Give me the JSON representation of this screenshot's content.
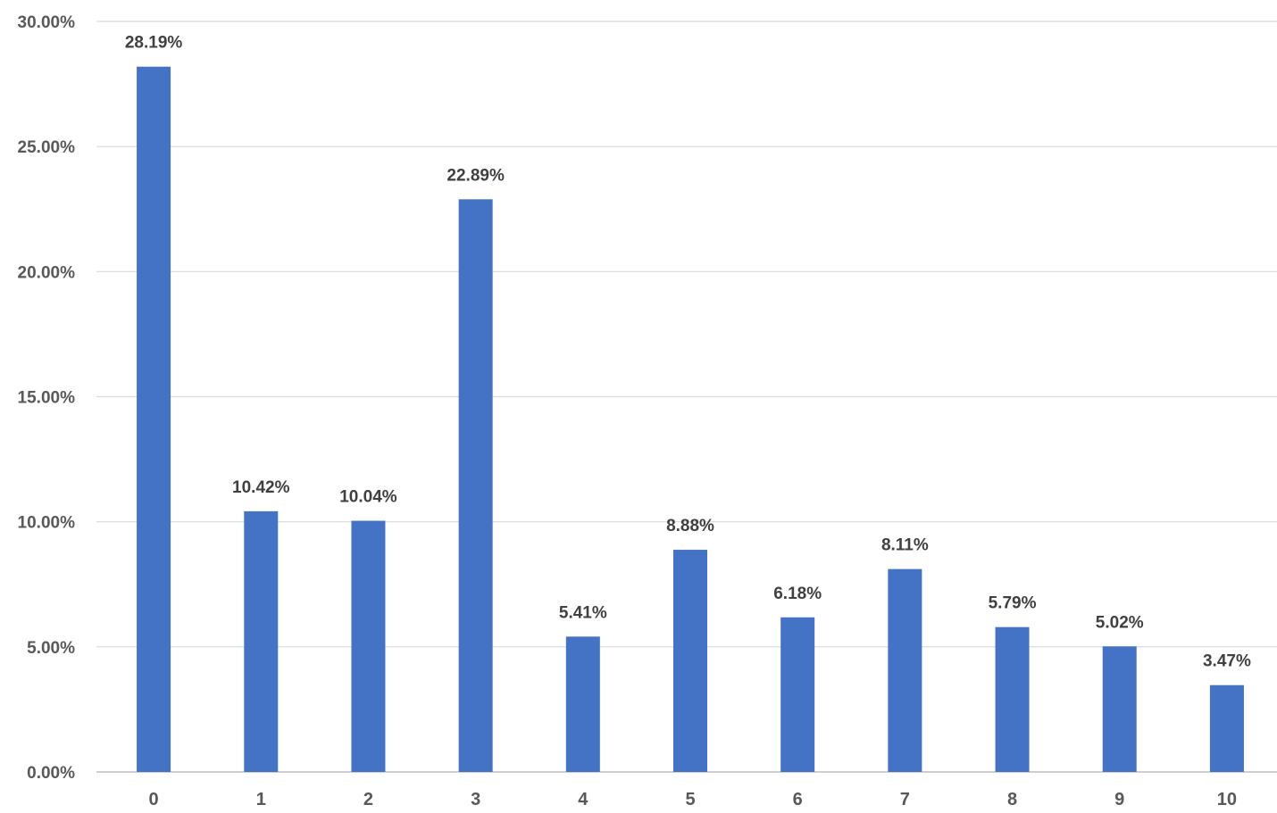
{
  "chart_data": {
    "type": "bar",
    "title": "",
    "xlabel": "",
    "ylabel": "",
    "categories": [
      "0",
      "1",
      "2",
      "3",
      "4",
      "5",
      "6",
      "7",
      "8",
      "9",
      "10"
    ],
    "values": [
      28.19,
      10.42,
      10.04,
      22.89,
      5.41,
      8.88,
      6.18,
      8.11,
      5.79,
      5.02,
      3.47
    ],
    "data_labels": [
      "28.19%",
      "10.42%",
      "10.04%",
      "22.89%",
      "5.41%",
      "8.88%",
      "6.18%",
      "8.11%",
      "5.79%",
      "5.02%",
      "3.47%"
    ],
    "y_ticks": [
      0,
      5,
      10,
      15,
      20,
      25,
      30
    ],
    "y_tick_labels": [
      "0.00%",
      "5.00%",
      "10.00%",
      "15.00%",
      "20.00%",
      "25.00%",
      "30.00%"
    ],
    "ylim": [
      0,
      30
    ],
    "grid": true,
    "legend": "none",
    "bar_color": "#4472c4"
  }
}
